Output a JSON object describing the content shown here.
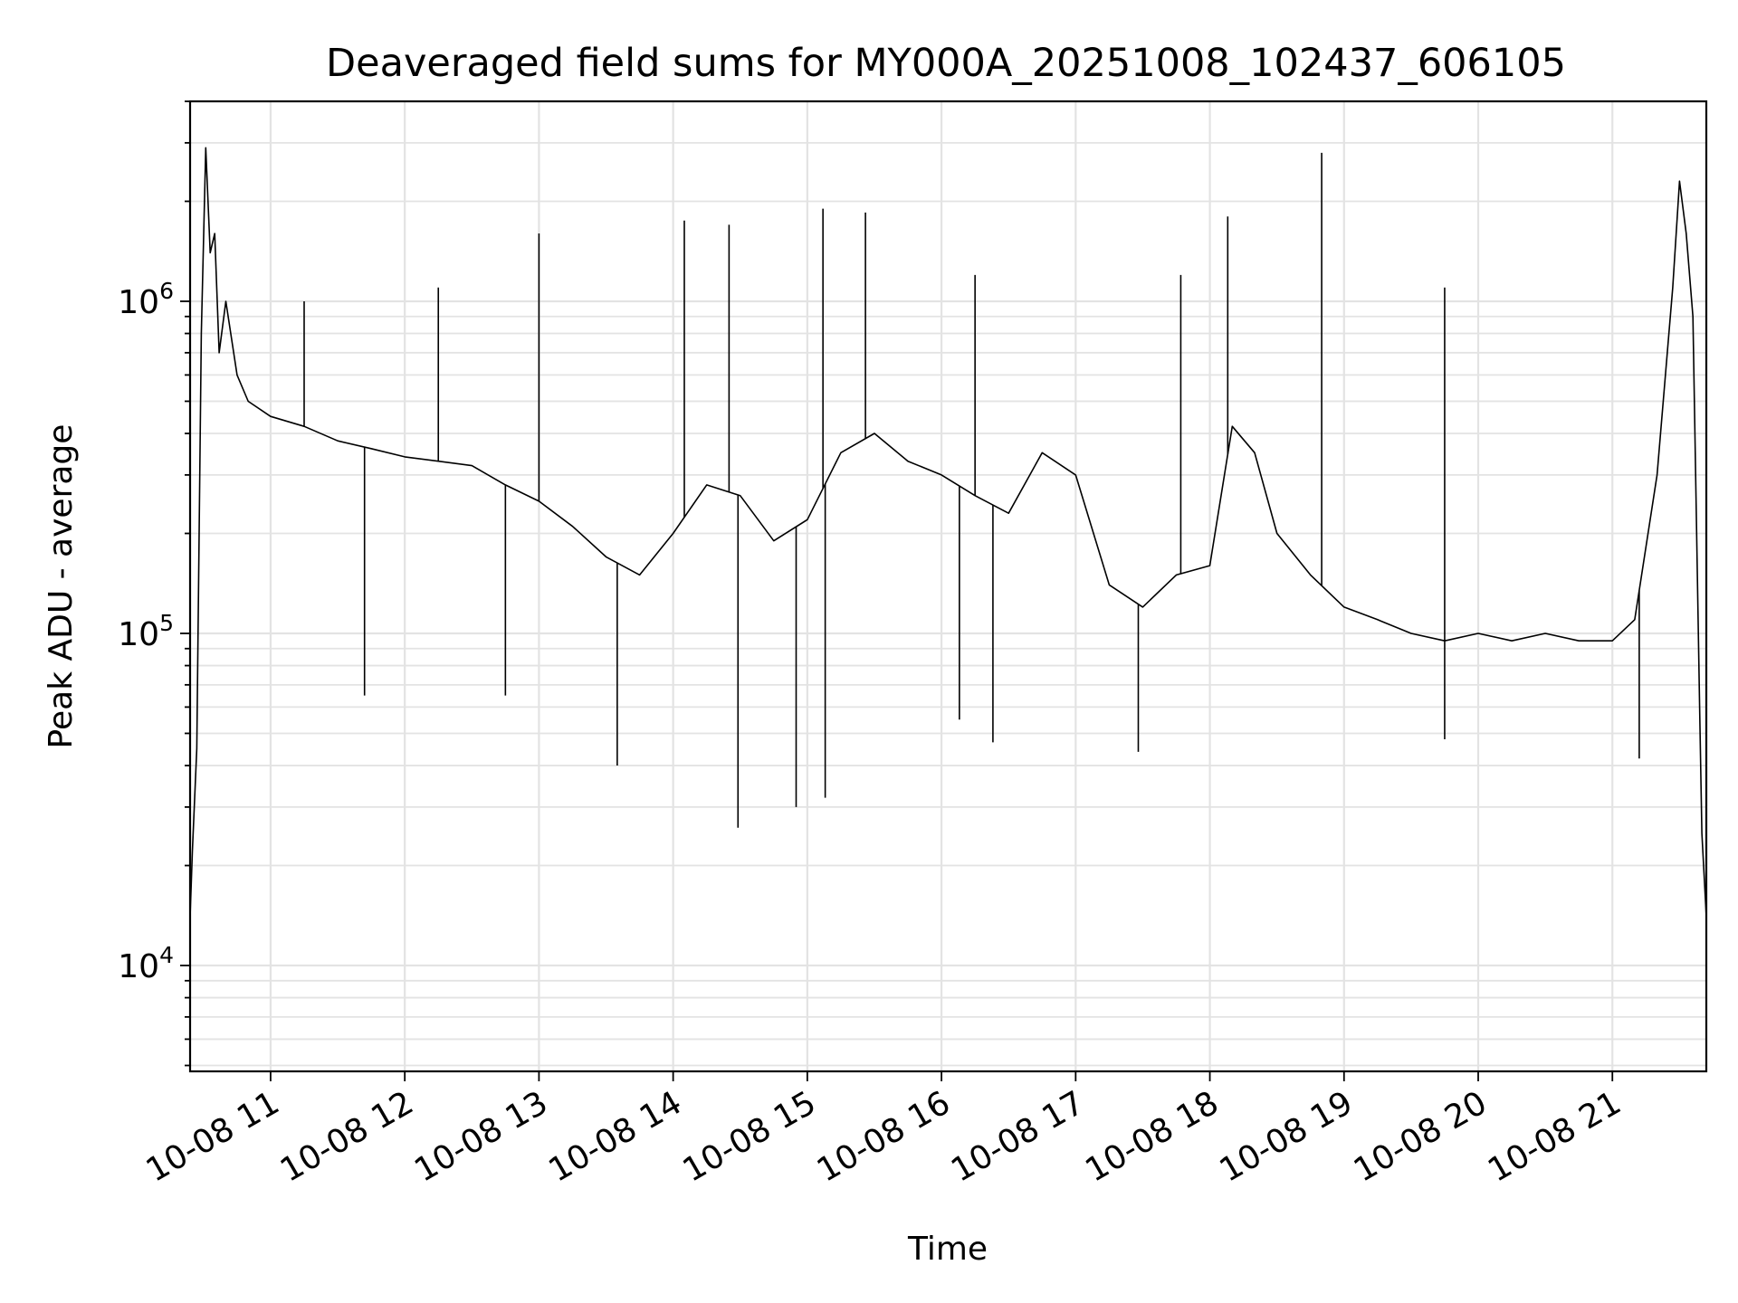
{
  "chart_data": {
    "type": "line",
    "title": "Deaveraged field sums for MY000A_20251008_102437_606105",
    "xlabel": "Time",
    "ylabel": "Peak ADU - average",
    "xlim": [
      "2025-10-08 10:24",
      "2025-10-08 21:42"
    ],
    "ylim": [
      4800,
      4000000
    ],
    "yscale": "log",
    "grid": true,
    "line_color": "#000000",
    "x_ticks": [
      {
        "time": "2025-10-08 11:00",
        "label": "10-08 11"
      },
      {
        "time": "2025-10-08 12:00",
        "label": "10-08 12"
      },
      {
        "time": "2025-10-08 13:00",
        "label": "10-08 13"
      },
      {
        "time": "2025-10-08 14:00",
        "label": "10-08 14"
      },
      {
        "time": "2025-10-08 15:00",
        "label": "10-08 15"
      },
      {
        "time": "2025-10-08 16:00",
        "label": "10-08 16"
      },
      {
        "time": "2025-10-08 17:00",
        "label": "10-08 17"
      },
      {
        "time": "2025-10-08 18:00",
        "label": "10-08 18"
      },
      {
        "time": "2025-10-08 19:00",
        "label": "10-08 19"
      },
      {
        "time": "2025-10-08 20:00",
        "label": "10-08 20"
      },
      {
        "time": "2025-10-08 21:00",
        "label": "10-08 21"
      }
    ],
    "y_ticks": [
      {
        "value": 10000,
        "base": "10",
        "exp": "4"
      },
      {
        "value": 100000,
        "base": "10",
        "exp": "5"
      },
      {
        "value": 1000000,
        "base": "10",
        "exp": "6"
      }
    ],
    "series": [
      {
        "points": [
          [
            "2025-10-08 10:24",
            14000
          ],
          [
            "2025-10-08 10:25",
            22000
          ],
          [
            "2025-10-08 10:27",
            45000
          ],
          [
            "2025-10-08 10:29",
            800000
          ],
          [
            "2025-10-08 10:31",
            2900000
          ],
          [
            "2025-10-08 10:33",
            1400000
          ],
          [
            "2025-10-08 10:35",
            1600000
          ],
          [
            "2025-10-08 10:37",
            700000
          ],
          [
            "2025-10-08 10:40",
            1000000
          ],
          [
            "2025-10-08 10:45",
            600000
          ],
          [
            "2025-10-08 10:50",
            500000
          ],
          [
            "2025-10-08 11:00",
            450000
          ],
          [
            "2025-10-08 11:15",
            420000
          ],
          [
            "2025-10-08 11:30",
            380000
          ],
          [
            "2025-10-08 11:45",
            360000
          ],
          [
            "2025-10-08 12:00",
            340000
          ],
          [
            "2025-10-08 12:15",
            330000
          ],
          [
            "2025-10-08 12:30",
            320000
          ],
          [
            "2025-10-08 12:45",
            280000
          ],
          [
            "2025-10-08 13:00",
            250000
          ],
          [
            "2025-10-08 13:15",
            210000
          ],
          [
            "2025-10-08 13:30",
            170000
          ],
          [
            "2025-10-08 13:45",
            150000
          ],
          [
            "2025-10-08 14:00",
            200000
          ],
          [
            "2025-10-08 14:15",
            280000
          ],
          [
            "2025-10-08 14:30",
            260000
          ],
          [
            "2025-10-08 14:45",
            190000
          ],
          [
            "2025-10-08 15:00",
            220000
          ],
          [
            "2025-10-08 15:15",
            350000
          ],
          [
            "2025-10-08 15:30",
            400000
          ],
          [
            "2025-10-08 15:45",
            330000
          ],
          [
            "2025-10-08 16:00",
            300000
          ],
          [
            "2025-10-08 16:15",
            260000
          ],
          [
            "2025-10-08 16:30",
            230000
          ],
          [
            "2025-10-08 16:45",
            350000
          ],
          [
            "2025-10-08 17:00",
            300000
          ],
          [
            "2025-10-08 17:15",
            140000
          ],
          [
            "2025-10-08 17:30",
            120000
          ],
          [
            "2025-10-08 17:45",
            150000
          ],
          [
            "2025-10-08 18:00",
            160000
          ],
          [
            "2025-10-08 18:10",
            420000
          ],
          [
            "2025-10-08 18:20",
            350000
          ],
          [
            "2025-10-08 18:30",
            200000
          ],
          [
            "2025-10-08 18:45",
            150000
          ],
          [
            "2025-10-08 19:00",
            120000
          ],
          [
            "2025-10-08 19:15",
            110000
          ],
          [
            "2025-10-08 19:30",
            100000
          ],
          [
            "2025-10-08 19:45",
            95000
          ],
          [
            "2025-10-08 20:00",
            100000
          ],
          [
            "2025-10-08 20:15",
            95000
          ],
          [
            "2025-10-08 20:30",
            100000
          ],
          [
            "2025-10-08 20:45",
            95000
          ],
          [
            "2025-10-08 21:00",
            95000
          ],
          [
            "2025-10-08 21:10",
            110000
          ],
          [
            "2025-10-08 21:20",
            300000
          ],
          [
            "2025-10-08 21:27",
            1100000
          ],
          [
            "2025-10-08 21:30",
            2300000
          ],
          [
            "2025-10-08 21:33",
            1600000
          ],
          [
            "2025-10-08 21:36",
            900000
          ],
          [
            "2025-10-08 21:39",
            60000
          ],
          [
            "2025-10-08 21:40",
            25000
          ],
          [
            "2025-10-08 21:42",
            14000
          ]
        ],
        "spikes": [
          [
            "2025-10-08 10:31",
            2900000
          ],
          [
            "2025-10-08 11:15",
            1000000
          ],
          [
            "2025-10-08 11:42",
            65000
          ],
          [
            "2025-10-08 12:15",
            1100000
          ],
          [
            "2025-10-08 12:45",
            65000
          ],
          [
            "2025-10-08 13:00",
            1600000
          ],
          [
            "2025-10-08 13:35",
            40000
          ],
          [
            "2025-10-08 14:05",
            1750000
          ],
          [
            "2025-10-08 14:25",
            1700000
          ],
          [
            "2025-10-08 14:29",
            26000
          ],
          [
            "2025-10-08 14:55",
            30000
          ],
          [
            "2025-10-08 15:07",
            1900000
          ],
          [
            "2025-10-08 15:08",
            32000
          ],
          [
            "2025-10-08 15:26",
            1850000
          ],
          [
            "2025-10-08 16:08",
            55000
          ],
          [
            "2025-10-08 16:15",
            1200000
          ],
          [
            "2025-10-08 16:23",
            47000
          ],
          [
            "2025-10-08 17:28",
            44000
          ],
          [
            "2025-10-08 17:47",
            1200000
          ],
          [
            "2025-10-08 18:08",
            1800000
          ],
          [
            "2025-10-08 18:50",
            2800000
          ],
          [
            "2025-10-08 19:45",
            1100000
          ],
          [
            "2025-10-08 19:45",
            48000
          ],
          [
            "2025-10-08 21:12",
            42000
          ],
          [
            "2025-10-08 21:30",
            2300000
          ]
        ]
      }
    ]
  }
}
